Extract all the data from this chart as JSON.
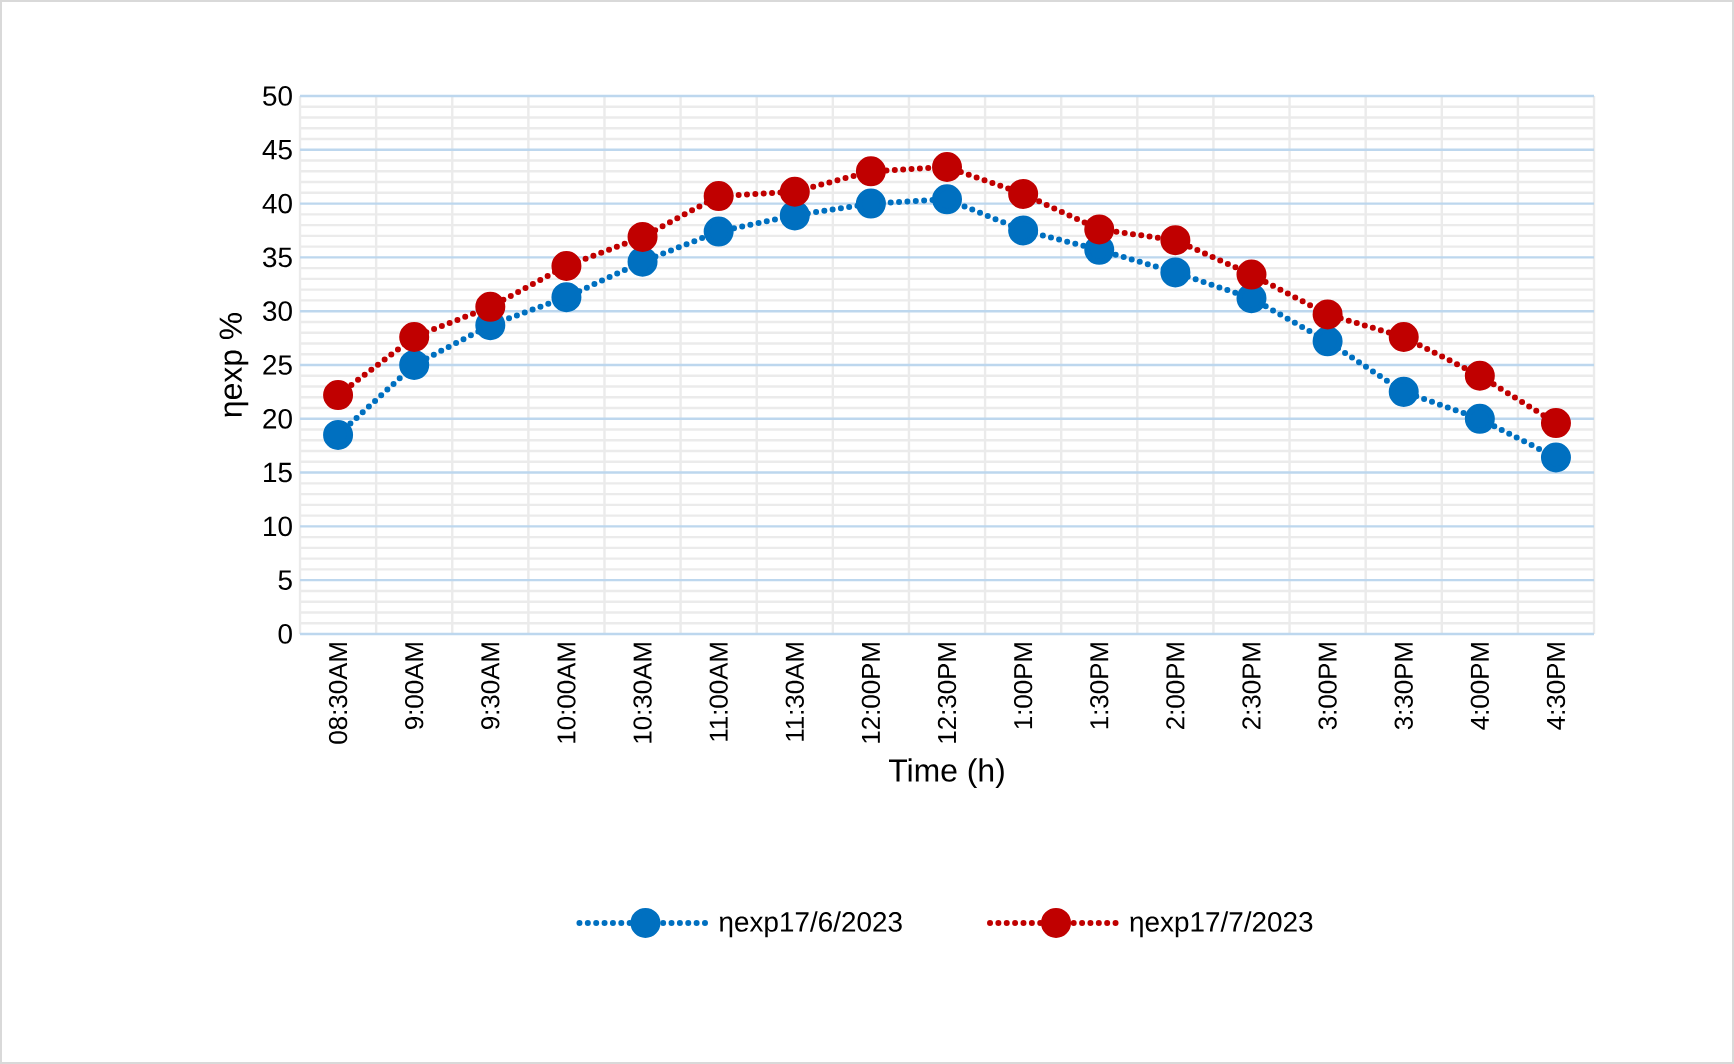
{
  "chart_data": {
    "type": "line",
    "xlabel": "Time (h)",
    "ylabel": "ηexp %",
    "categories": [
      "08:30AM",
      "9:00AM",
      "9:30AM",
      "10:00AM",
      "10:30AM",
      "11:00AM",
      "11:30AM",
      "12:00PM",
      "12:30PM",
      "1:00PM",
      "1:30PM",
      "2:00PM",
      "2:30PM",
      "3:00PM",
      "3:30PM",
      "4:00PM",
      "4:30PM"
    ],
    "series": [
      {
        "name": "ηexp17/6/2023",
        "color": "#0070c0",
        "values": [
          18.5,
          25,
          28.7,
          31.3,
          34.6,
          37.4,
          38.9,
          40,
          40.4,
          37.5,
          35.7,
          33.6,
          31.2,
          27.2,
          22.5,
          20,
          16.4
        ]
      },
      {
        "name": "ηexp17/7/2023",
        "color": "#c00000",
        "values": [
          22.2,
          27.6,
          30.4,
          34.2,
          36.9,
          40.7,
          41.1,
          43,
          43.4,
          40.9,
          37.6,
          36.6,
          33.4,
          29.7,
          27.6,
          24,
          19.6
        ]
      }
    ],
    "ylim": [
      0,
      50
    ],
    "yticks": [
      0,
      5,
      10,
      15,
      20,
      25,
      30,
      35,
      40,
      45,
      50
    ],
    "grid": true,
    "legend": "bottom",
    "marker": "circle",
    "line_style": "dotted"
  }
}
